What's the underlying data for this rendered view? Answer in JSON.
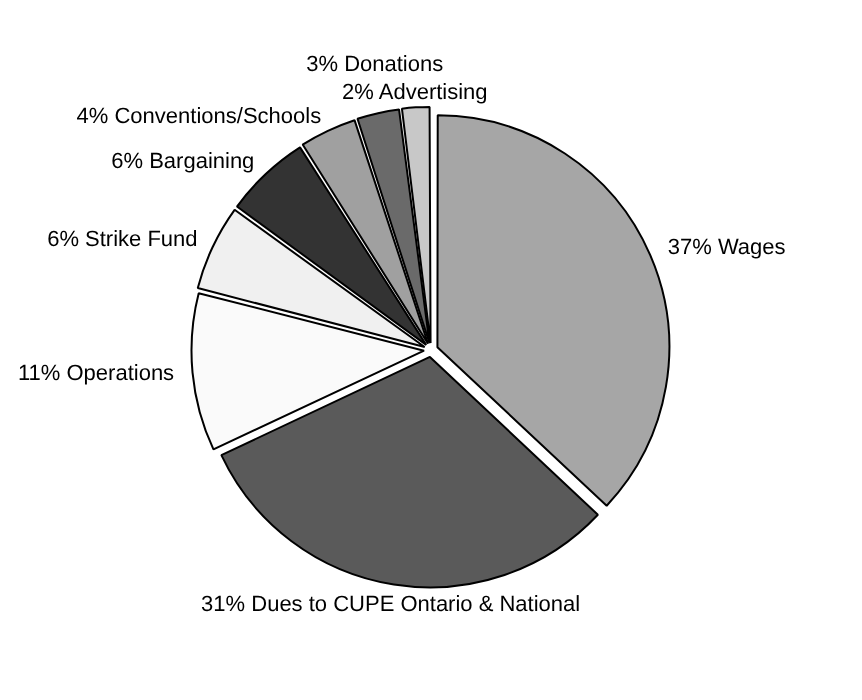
{
  "chart_data": {
    "type": "pie",
    "categories": [
      "Wages",
      "Dues to CUPE Ontario & National",
      "Operations",
      "Strike Fund",
      "Bargaining",
      "Conventions/Schools",
      "Donations",
      "Advertising"
    ],
    "values": [
      37,
      31,
      11,
      6,
      6,
      4,
      3,
      2
    ],
    "value_labels": [
      "37%",
      "31%",
      "11%",
      "6%",
      "6%",
      "4%",
      "3%",
      "2%"
    ],
    "colors": [
      "#a6a6a6",
      "#5a5a5a",
      "#fafafa",
      "#f0f0f0",
      "#333333",
      "#a0a0a0",
      "#6a6a6a",
      "#c8c8c8"
    ],
    "legend": false
  }
}
